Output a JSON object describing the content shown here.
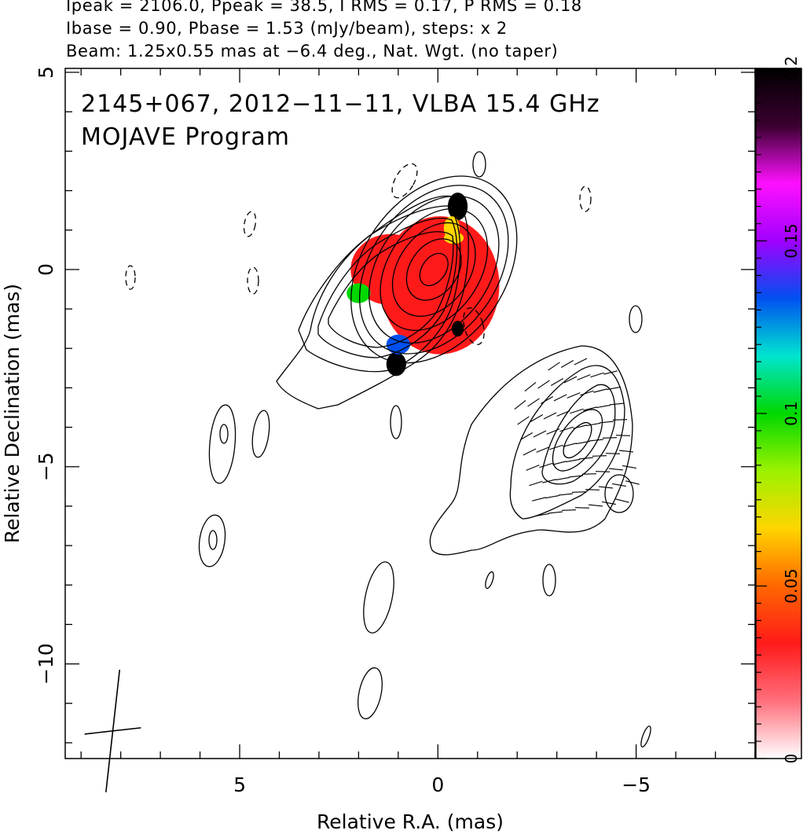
{
  "header": {
    "line1": "Ipeak = 2106.0, Ppeak = 38.5, I RMS = 0.17, P RMS = 0.18",
    "line2": "Ibase = 0.90, Pbase = 1.53 (mJy/beam), steps: x 2",
    "line3": "Beam: 1.25x0.55 mas at −6.4 deg., Nat. Wgt. (no taper)"
  },
  "chart_data": {
    "type": "heatmap",
    "title": "2145+067, 2012−11−11, VLBA 15.4 GHz",
    "subtitle": "MOJAVE Program",
    "xlabel": "Relative R.A. (mas)",
    "ylabel": "Relative Declination (mas)",
    "xlim": [
      9.4,
      -8.0
    ],
    "ylim": [
      -12.4,
      5.1
    ],
    "x_ticks": [
      {
        "value": 5,
        "label": "5"
      },
      {
        "value": 0,
        "label": "0"
      },
      {
        "value": -5,
        "label": "−5"
      }
    ],
    "y_ticks": [
      {
        "value": 5,
        "label": "5"
      },
      {
        "value": 0,
        "label": "0"
      },
      {
        "value": -5,
        "label": "−5"
      },
      {
        "value": -10,
        "label": "−10"
      }
    ],
    "colorbar": {
      "range": [
        0,
        0.2
      ],
      "ticks": [
        {
          "value": 0,
          "label": "0"
        },
        {
          "value": 0.05,
          "label": "0.05"
        },
        {
          "value": 0.1,
          "label": "0.1"
        },
        {
          "value": 0.15,
          "label": "0.15"
        },
        {
          "value": 0.2,
          "label": "0.2"
        }
      ],
      "colors": [
        "#ffffff",
        "#ff6f7c",
        "#ff1a1a",
        "#ff6600",
        "#ffd500",
        "#9cf200",
        "#00d800",
        "#00e5cf",
        "#0050f0",
        "#a000ff",
        "#ff10ff",
        "#3a0030",
        "#000000"
      ]
    },
    "core": {
      "center": [
        0.1,
        0.0
      ],
      "contours": [
        {
          "rx": 0.3,
          "ry": 0.45
        },
        {
          "rx": 0.6,
          "ry": 0.85
        },
        {
          "rx": 0.9,
          "ry": 1.3
        },
        {
          "rx": 1.15,
          "ry": 1.7
        },
        {
          "rx": 1.4,
          "ry": 2.05
        },
        {
          "rx": 1.6,
          "ry": 2.35
        },
        {
          "rx": 1.8,
          "ry": 2.6
        }
      ],
      "rotation_deg": 35
    },
    "polarization_patches": [
      {
        "x": -0.05,
        "y": -0.4,
        "rx": 1.5,
        "ry": 1.75,
        "fraction": 0.03
      },
      {
        "x": 1.2,
        "y": 0.0,
        "rx": 1.0,
        "ry": 0.9,
        "fraction": 0.035
      },
      {
        "x": 2.0,
        "y": -0.6,
        "rx": 0.3,
        "ry": 0.25,
        "fraction": 0.1
      },
      {
        "x": -0.5,
        "y": 1.6,
        "rx": 0.25,
        "ry": 0.35,
        "fraction": 0.2
      },
      {
        "x": -0.35,
        "y": 1.05,
        "rx": 0.2,
        "ry": 0.3,
        "fraction": 0.075
      },
      {
        "x": 1.05,
        "y": -2.4,
        "rx": 0.25,
        "ry": 0.3,
        "fraction": 0.2
      },
      {
        "x": 1.0,
        "y": -1.9,
        "rx": 0.3,
        "ry": 0.25,
        "fraction": 0.13
      },
      {
        "x": -0.5,
        "y": -1.5,
        "rx": 0.15,
        "ry": 0.2,
        "fraction": 0.2
      },
      {
        "x": -0.4,
        "y": 0.8,
        "rx": 0.25,
        "ry": 0.15,
        "fraction": 0.06
      }
    ],
    "beam": {
      "center": [
        8.2,
        -11.7
      ],
      "major_mas": 1.25,
      "minor_mas": 0.55,
      "pa_deg": -6.4
    }
  }
}
